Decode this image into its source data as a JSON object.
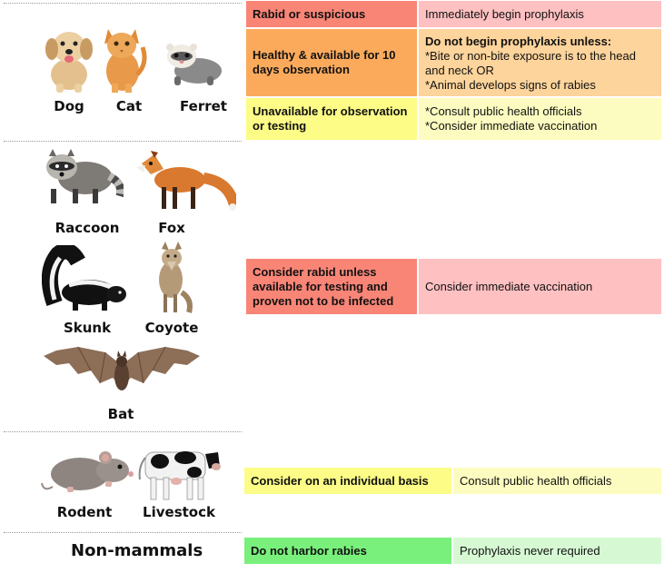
{
  "animal_groups": {
    "domestic": [
      {
        "key": "dog",
        "label": "Dog"
      },
      {
        "key": "cat",
        "label": "Cat"
      },
      {
        "key": "ferret",
        "label": "Ferret"
      }
    ],
    "wild": [
      {
        "key": "raccoon",
        "label": "Raccoon"
      },
      {
        "key": "fox",
        "label": "Fox"
      },
      {
        "key": "skunk",
        "label": "Skunk"
      },
      {
        "key": "coyote",
        "label": "Coyote"
      },
      {
        "key": "bat",
        "label": "Bat"
      }
    ],
    "other": [
      {
        "key": "rodent",
        "label": "Rodent"
      },
      {
        "key": "livestock",
        "label": "Livestock"
      }
    ],
    "non_mammals": {
      "label": "Non-mammals"
    }
  },
  "guidance": {
    "domestic": [
      {
        "condition": "Rabid or suspicious",
        "action": "Immediately begin prophylaxis",
        "condition_color": "#f98577",
        "action_color": "#fec0c1"
      },
      {
        "condition": "Healthy & available for 10 days observation",
        "action_heading": "Do not begin prophylaxis unless:",
        "action_lines": [
          "*Bite or non-bite exposure is to the head and neck OR",
          "*Animal develops signs of rabies"
        ],
        "condition_color": "#fbaa5c",
        "action_color": "#fdd49b"
      },
      {
        "condition": "Unavailable for observation or testing",
        "action_lines": [
          "*Consult public health officials",
          "*Consider immediate vaccination"
        ],
        "condition_color": "#fcfc86",
        "action_color": "#fdfcc0"
      }
    ],
    "wild": {
      "condition": "Consider rabid unless available for testing and proven not to be infected",
      "action": "Consider immediate vaccination",
      "condition_color": "#f98577",
      "action_color": "#fec0c1"
    },
    "other": {
      "condition": "Consider on an individual basis",
      "action": "Consult public health officials",
      "condition_color": "#fcfc86",
      "action_color": "#fdfcc0"
    },
    "non_mammals": {
      "condition": "Do not harbor rabies",
      "action": "Prophylaxis never required",
      "condition_color": "#79f07b",
      "action_color": "#d6f9d3"
    }
  }
}
